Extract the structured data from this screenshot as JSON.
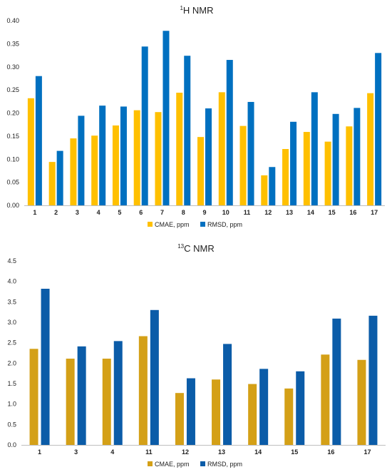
{
  "chart_data": [
    {
      "type": "bar",
      "title_sup": "1",
      "title": "H NMR",
      "categories": [
        "1",
        "2",
        "3",
        "4",
        "5",
        "6",
        "7",
        "8",
        "9",
        "10",
        "11",
        "12",
        "13",
        "14",
        "15",
        "16",
        "17"
      ],
      "series": [
        {
          "name": "CMAE, ppm",
          "color": "#FFC000",
          "values": [
            0.232,
            0.094,
            0.145,
            0.151,
            0.173,
            0.206,
            0.202,
            0.244,
            0.148,
            0.245,
            0.172,
            0.065,
            0.122,
            0.159,
            0.138,
            0.171,
            0.243
          ]
        },
        {
          "name": "RMSD, ppm",
          "color": "#0070C0",
          "values": [
            0.28,
            0.118,
            0.194,
            0.216,
            0.214,
            0.344,
            0.378,
            0.324,
            0.21,
            0.315,
            0.224,
            0.083,
            0.181,
            0.245,
            0.198,
            0.211,
            0.33
          ]
        }
      ],
      "ylim": [
        0,
        0.4
      ],
      "yticks": [
        "0.00",
        "0.05",
        "0.10",
        "0.15",
        "0.20",
        "0.25",
        "0.30",
        "0.35",
        "0.40"
      ],
      "grid": false,
      "legend": "bottom"
    },
    {
      "type": "bar",
      "title_sup": "13",
      "title": "C NMR",
      "categories": [
        "1",
        "3",
        "4",
        "11",
        "12",
        "13",
        "14",
        "15",
        "16",
        "17"
      ],
      "series": [
        {
          "name": "CMAE, ppm",
          "color": "#D4A017",
          "values": [
            2.35,
            2.11,
            2.11,
            2.66,
            1.27,
            1.6,
            1.49,
            1.38,
            2.21,
            2.08
          ]
        },
        {
          "name": "RMSD, ppm",
          "color": "#0B5CA8",
          "values": [
            3.82,
            2.41,
            2.54,
            3.3,
            1.63,
            2.47,
            1.86,
            1.8,
            3.09,
            3.16
          ]
        }
      ],
      "ylim": [
        0,
        4.5
      ],
      "yticks": [
        "0.0",
        "0.5",
        "1.0",
        "1.5",
        "2.0",
        "2.5",
        "3.0",
        "3.5",
        "4.0",
        "4.5"
      ],
      "grid": false,
      "legend": "bottom"
    }
  ]
}
